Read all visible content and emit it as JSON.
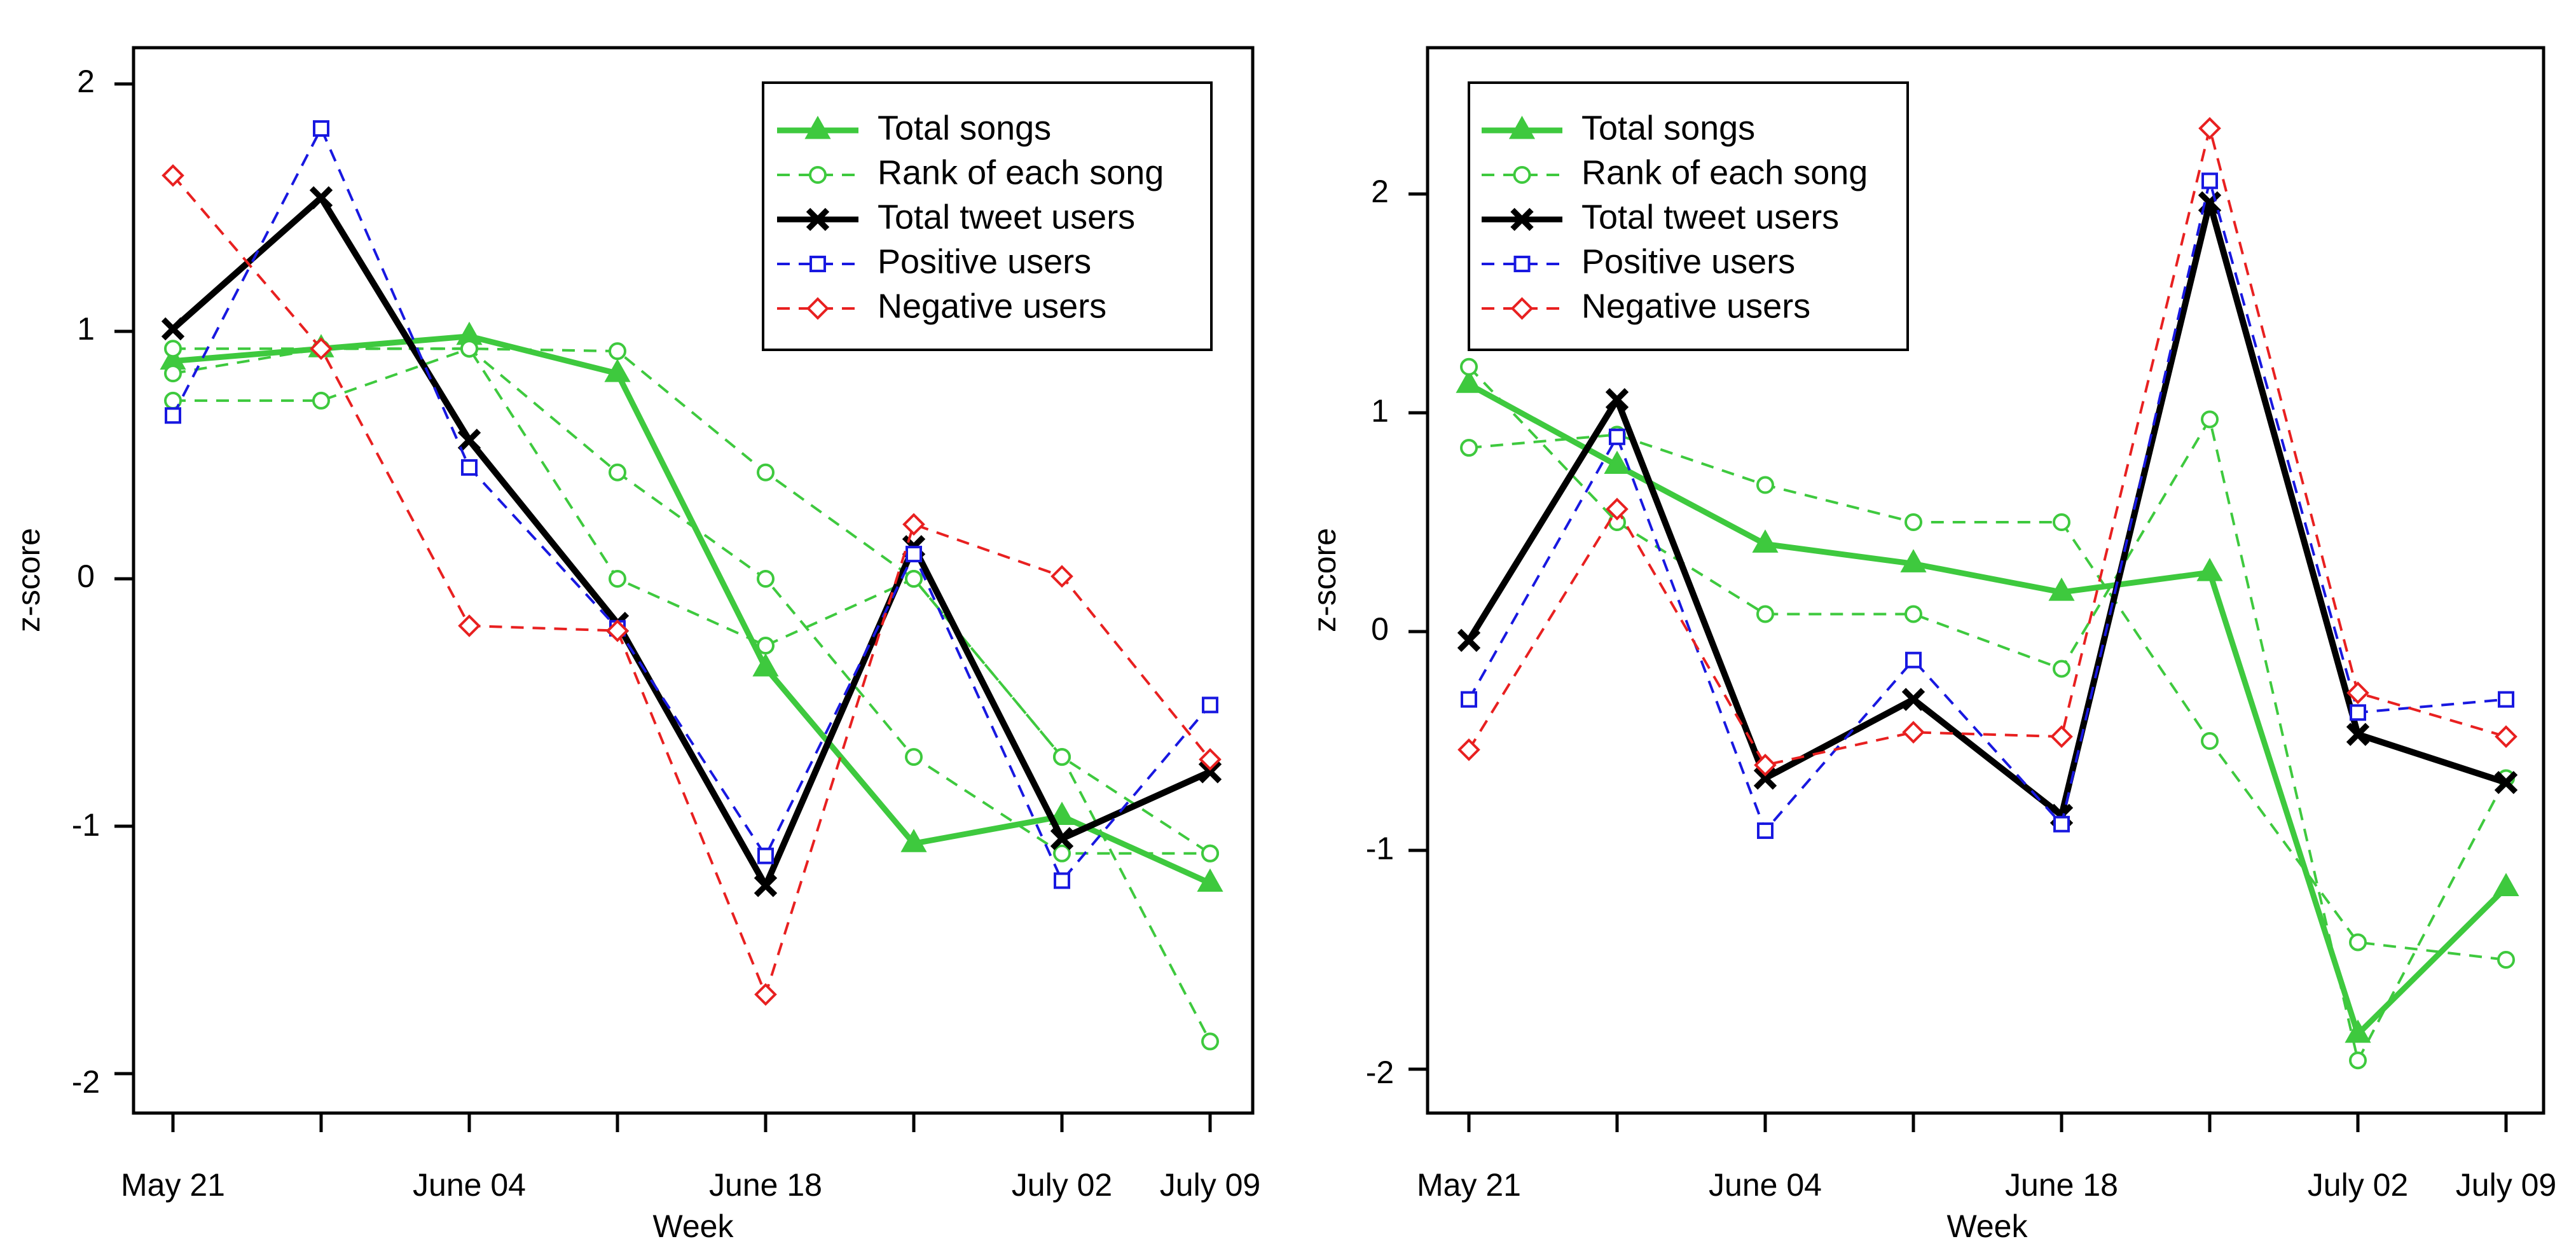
{
  "colors": {
    "total_songs": "#3ec93e",
    "rank": "#3ec93e",
    "total_tweet_users": "#000000",
    "positive_users": "#1818e0",
    "negative_users": "#e82020"
  },
  "chart_data": [
    {
      "type": "line",
      "xlabel": "Week",
      "ylabel": "z-score",
      "x_ticks": [
        "May 21",
        "June 04",
        "June 18",
        "July 02",
        "July 09"
      ],
      "y_ticks": [
        "-2",
        "-1",
        "0",
        "1",
        "2"
      ],
      "ylim": [
        -2.15,
        2.15
      ],
      "grid": false,
      "legend_position": "top-right",
      "x": [
        "2013-05-21",
        "2013-05-28",
        "2013-06-04",
        "2013-06-11",
        "2013-06-18",
        "2013-06-25",
        "2013-07-02",
        "2013-07-09"
      ],
      "series": [
        {
          "name": "Total songs",
          "style": "solid",
          "marker": "triangle",
          "color_key": "total_songs",
          "values": [
            0.88,
            0.93,
            0.98,
            0.83,
            -0.36,
            -1.07,
            -0.96,
            -1.23
          ]
        },
        {
          "name": "Rank of each song",
          "style": "dashed",
          "marker": "circle",
          "color_key": "rank",
          "values": [
            0.93,
            0.93,
            0.93,
            0.92,
            0.43,
            0.0,
            -0.72,
            -1.11
          ]
        },
        {
          "name": "",
          "style": "dashed",
          "marker": "circle",
          "color_key": "rank",
          "values": [
            0.72,
            0.72,
            0.93,
            0.43,
            0.0,
            -0.72,
            -1.11,
            -1.11
          ]
        },
        {
          "name": "",
          "style": "dashed",
          "marker": "circle",
          "color_key": "rank",
          "values": [
            0.83,
            0.93,
            0.93,
            0.0,
            -0.27,
            0.0,
            -0.72,
            -1.87
          ]
        },
        {
          "name": "Total tweet users",
          "style": "solid",
          "marker": "cross",
          "color_key": "total_tweet_users",
          "values": [
            1.01,
            1.54,
            0.56,
            -0.18,
            -1.24,
            0.13,
            -1.05,
            -0.78
          ]
        },
        {
          "name": "Positive users",
          "style": "dashed",
          "marker": "square",
          "color_key": "positive_users",
          "values": [
            0.66,
            1.82,
            0.45,
            -0.2,
            -1.12,
            0.1,
            -1.22,
            -0.51
          ]
        },
        {
          "name": "Negative users",
          "style": "dashed",
          "marker": "diamond",
          "color_key": "negative_users",
          "values": [
            1.63,
            0.93,
            -0.19,
            -0.21,
            -1.68,
            0.22,
            0.01,
            -0.73
          ]
        }
      ]
    },
    {
      "type": "line",
      "xlabel": "Week",
      "ylabel": "z-score",
      "x_ticks": [
        "May 21",
        "June 04",
        "June 18",
        "July 02",
        "July 09"
      ],
      "y_ticks": [
        "-2",
        "-1",
        "0",
        "1",
        "2"
      ],
      "ylim": [
        -2.18,
        2.6
      ],
      "grid": false,
      "legend_position": "top-left",
      "x": [
        "2013-05-21",
        "2013-05-28",
        "2013-06-04",
        "2013-06-11",
        "2013-06-18",
        "2013-06-25",
        "2013-07-02",
        "2013-07-09"
      ],
      "series": [
        {
          "name": "Total songs",
          "style": "solid",
          "marker": "triangle",
          "color_key": "total_songs",
          "values": [
            1.13,
            0.76,
            0.4,
            0.31,
            0.18,
            0.27,
            -1.84,
            -1.17
          ]
        },
        {
          "name": "Rank of each song",
          "style": "dashed",
          "marker": "circle",
          "color_key": "rank",
          "values": [
            0.84,
            0.9,
            0.67,
            0.5,
            0.5,
            -0.5,
            -1.42,
            -1.5
          ]
        },
        {
          "name": "",
          "style": "dashed",
          "marker": "circle",
          "color_key": "rank",
          "values": [
            1.21,
            0.5,
            0.08,
            0.08,
            -0.17,
            0.97,
            -1.96,
            -0.67
          ]
        },
        {
          "name": "Total tweet users",
          "style": "solid",
          "marker": "cross",
          "color_key": "total_tweet_users",
          "values": [
            -0.04,
            1.06,
            -0.67,
            -0.31,
            -0.84,
            1.96,
            -0.47,
            -0.69
          ]
        },
        {
          "name": "Positive users",
          "style": "dashed",
          "marker": "square",
          "color_key": "positive_users",
          "values": [
            -0.31,
            0.89,
            -0.91,
            -0.13,
            -0.88,
            2.06,
            -0.37,
            -0.31
          ]
        },
        {
          "name": "Negative users",
          "style": "dashed",
          "marker": "diamond",
          "color_key": "negative_users",
          "values": [
            -0.54,
            0.56,
            -0.61,
            -0.46,
            -0.48,
            2.3,
            -0.28,
            -0.48
          ]
        }
      ]
    }
  ]
}
